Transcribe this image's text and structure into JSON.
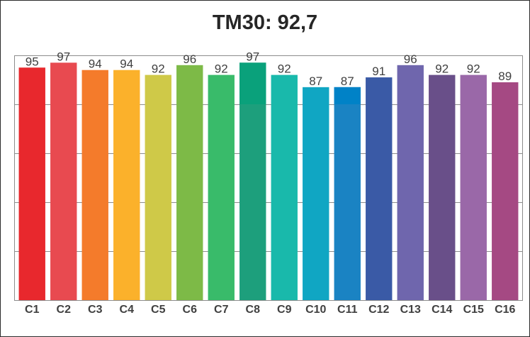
{
  "chart_data": {
    "type": "bar",
    "title": "TM30: 92,7",
    "xlabel": "",
    "ylabel": "",
    "ylim": [
      0,
      100
    ],
    "grid": true,
    "legend": "none",
    "categories": [
      "C1",
      "C2",
      "C3",
      "C4",
      "C5",
      "C6",
      "C7",
      "C8",
      "C9",
      "C10",
      "C11",
      "C12",
      "C13",
      "C14",
      "C15",
      "C16"
    ],
    "values": [
      95,
      97,
      94,
      94,
      92,
      96,
      92,
      97,
      92,
      87,
      87,
      91,
      96,
      92,
      92,
      89
    ],
    "colors": [
      "#e8282d",
      "#e84a50",
      "#f47b2b",
      "#fbb12b",
      "#cfc948",
      "#7dba47",
      "#39bb6a",
      "#1d9f7c",
      "#19b9ab",
      "#10a6c3",
      "#1a83c3",
      "#3a5aa6",
      "#6f66ad",
      "#694f89",
      "#9a68a8",
      "#a54983"
    ],
    "top_colors": [
      null,
      null,
      null,
      null,
      null,
      null,
      null,
      "#0aa17b",
      null,
      null,
      "#0082c7",
      null,
      null,
      null,
      null,
      null
    ],
    "top_color_until": 80
  }
}
